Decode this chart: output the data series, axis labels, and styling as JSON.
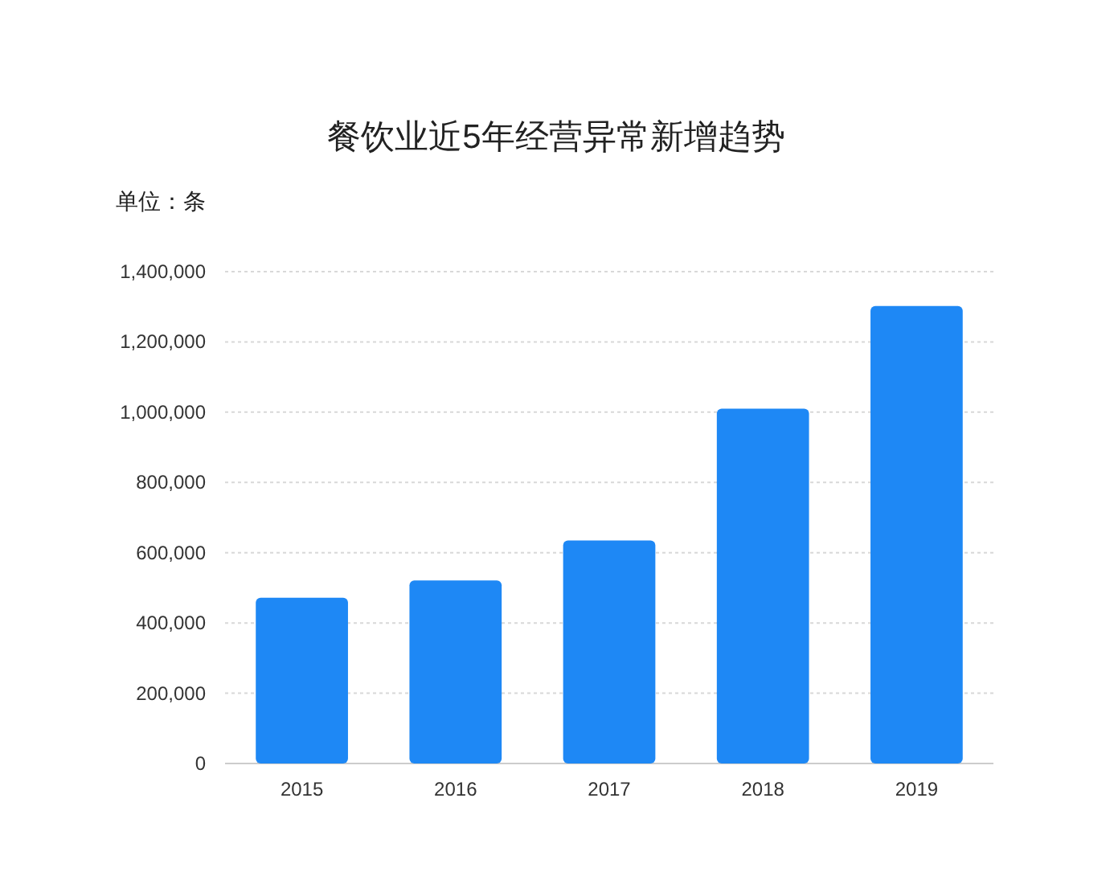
{
  "chart_data": {
    "type": "bar",
    "title": "餐饮业近5年经营异常新增趋势",
    "ylabel": "单位：条",
    "categories": [
      "2015",
      "2016",
      "2017",
      "2018",
      "2019"
    ],
    "values": [
      472000,
      521000,
      635000,
      1010000,
      1302000
    ],
    "color": "#1e88f5",
    "ylim": [
      0,
      1400000
    ],
    "yticks": [
      {
        "value": 0,
        "label": "0"
      },
      {
        "value": 200000,
        "label": "200,000"
      },
      {
        "value": 400000,
        "label": "400,000"
      },
      {
        "value": 600000,
        "label": "600,000"
      },
      {
        "value": 800000,
        "label": "800,000"
      },
      {
        "value": 1000000,
        "label": "1,000,000"
      },
      {
        "value": 1200000,
        "label": "1,200,000"
      },
      {
        "value": 1400000,
        "label": "1,400,000"
      }
    ],
    "grid": "y"
  }
}
